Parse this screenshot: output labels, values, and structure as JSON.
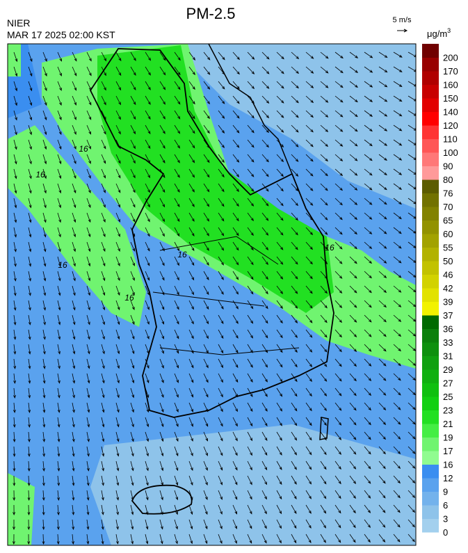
{
  "header": {
    "title": "PM-2.5",
    "agency": "NIER",
    "timestamp": "MAR 17 2025 02:00 KST",
    "wind_scale": "5 m/s"
  },
  "colorbar": {
    "unit": "μg/m",
    "unit_exponent": "3",
    "ticks": [
      0,
      3,
      6,
      9,
      12,
      16,
      17,
      19,
      21,
      23,
      25,
      27,
      29,
      31,
      33,
      36,
      37,
      39,
      42,
      46,
      50,
      55,
      60,
      65,
      70,
      76,
      80,
      90,
      100,
      110,
      120,
      140,
      150,
      160,
      170,
      200
    ],
    "colors": [
      "#a3d0ee",
      "#8ec3ea",
      "#73b2ec",
      "#5aa2ee",
      "#3a8ef0",
      "#90fc90",
      "#70f470",
      "#44ee44",
      "#22e022",
      "#12d012",
      "#10c010",
      "#10b010",
      "#10a010",
      "#0e900e",
      "#0b800b",
      "#006a00",
      "#f2f200",
      "#e2e200",
      "#d2d200",
      "#c2c200",
      "#b2b200",
      "#a2a200",
      "#929200",
      "#828200",
      "#727200",
      "#5c5c00",
      "#ff9a9a",
      "#ff7878",
      "#ff5656",
      "#ff3434",
      "#ff0000",
      "#e20000",
      "#c80000",
      "#b00000",
      "#980000",
      "#700000"
    ]
  },
  "map": {
    "contour_labels": [
      "16",
      "16",
      "16",
      "16",
      "16",
      "16"
    ]
  }
}
